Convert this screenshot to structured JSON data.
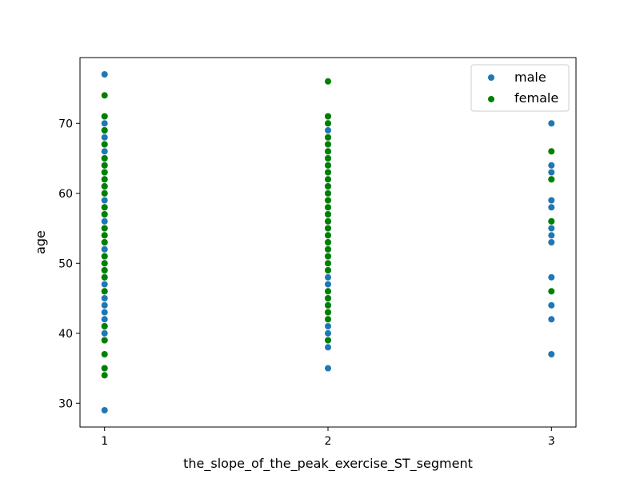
{
  "chart_data": {
    "type": "scatter",
    "title": "",
    "xlabel": "the_slope_of_the_peak_exercise_ST_segment",
    "ylabel": "age",
    "xlim": [
      0.89,
      3.11
    ],
    "ylim": [
      26.6,
      79.4
    ],
    "xticks": [
      1,
      2,
      3
    ],
    "yticks": [
      30,
      40,
      50,
      60,
      70
    ],
    "grid": false,
    "legend_position": "top-right",
    "series": [
      {
        "name": "male",
        "color": "#1f77b4",
        "points": [
          [
            1,
            77
          ],
          [
            1,
            71
          ],
          [
            1,
            70
          ],
          [
            1,
            69
          ],
          [
            1,
            68
          ],
          [
            1,
            67
          ],
          [
            1,
            66
          ],
          [
            1,
            65
          ],
          [
            1,
            64
          ],
          [
            1,
            63
          ],
          [
            1,
            62
          ],
          [
            1,
            61
          ],
          [
            1,
            60
          ],
          [
            1,
            59
          ],
          [
            1,
            58
          ],
          [
            1,
            57
          ],
          [
            1,
            56
          ],
          [
            1,
            55
          ],
          [
            1,
            54
          ],
          [
            1,
            53
          ],
          [
            1,
            52
          ],
          [
            1,
            51
          ],
          [
            1,
            50
          ],
          [
            1,
            49
          ],
          [
            1,
            48
          ],
          [
            1,
            47
          ],
          [
            1,
            46
          ],
          [
            1,
            45
          ],
          [
            1,
            44
          ],
          [
            1,
            43
          ],
          [
            1,
            42
          ],
          [
            1,
            41
          ],
          [
            1,
            40
          ],
          [
            1,
            39
          ],
          [
            1,
            35
          ],
          [
            1,
            29
          ],
          [
            2,
            71
          ],
          [
            2,
            70
          ],
          [
            2,
            69
          ],
          [
            2,
            68
          ],
          [
            2,
            67
          ],
          [
            2,
            66
          ],
          [
            2,
            65
          ],
          [
            2,
            64
          ],
          [
            2,
            63
          ],
          [
            2,
            62
          ],
          [
            2,
            61
          ],
          [
            2,
            60
          ],
          [
            2,
            59
          ],
          [
            2,
            58
          ],
          [
            2,
            57
          ],
          [
            2,
            56
          ],
          [
            2,
            55
          ],
          [
            2,
            54
          ],
          [
            2,
            53
          ],
          [
            2,
            52
          ],
          [
            2,
            51
          ],
          [
            2,
            50
          ],
          [
            2,
            49
          ],
          [
            2,
            48
          ],
          [
            2,
            47
          ],
          [
            2,
            46
          ],
          [
            2,
            45
          ],
          [
            2,
            44
          ],
          [
            2,
            43
          ],
          [
            2,
            42
          ],
          [
            2,
            41
          ],
          [
            2,
            40
          ],
          [
            2,
            39
          ],
          [
            2,
            38
          ],
          [
            2,
            35
          ],
          [
            3,
            70
          ],
          [
            3,
            64
          ],
          [
            3,
            63
          ],
          [
            3,
            62
          ],
          [
            3,
            59
          ],
          [
            3,
            58
          ],
          [
            3,
            56
          ],
          [
            3,
            55
          ],
          [
            3,
            54
          ],
          [
            3,
            53
          ],
          [
            3,
            48
          ],
          [
            3,
            44
          ],
          [
            3,
            42
          ],
          [
            3,
            37
          ]
        ]
      },
      {
        "name": "female",
        "color": "#008000",
        "points": [
          [
            1,
            74
          ],
          [
            1,
            71
          ],
          [
            1,
            69
          ],
          [
            1,
            67
          ],
          [
            1,
            65
          ],
          [
            1,
            64
          ],
          [
            1,
            63
          ],
          [
            1,
            62
          ],
          [
            1,
            61
          ],
          [
            1,
            60
          ],
          [
            1,
            58
          ],
          [
            1,
            57
          ],
          [
            1,
            55
          ],
          [
            1,
            54
          ],
          [
            1,
            53
          ],
          [
            1,
            51
          ],
          [
            1,
            50
          ],
          [
            1,
            49
          ],
          [
            1,
            48
          ],
          [
            1,
            46
          ],
          [
            1,
            41
          ],
          [
            1,
            39
          ],
          [
            1,
            37
          ],
          [
            1,
            35
          ],
          [
            1,
            34
          ],
          [
            2,
            76
          ],
          [
            2,
            71
          ],
          [
            2,
            70
          ],
          [
            2,
            68
          ],
          [
            2,
            67
          ],
          [
            2,
            66
          ],
          [
            2,
            65
          ],
          [
            2,
            64
          ],
          [
            2,
            63
          ],
          [
            2,
            62
          ],
          [
            2,
            61
          ],
          [
            2,
            60
          ],
          [
            2,
            59
          ],
          [
            2,
            58
          ],
          [
            2,
            57
          ],
          [
            2,
            56
          ],
          [
            2,
            55
          ],
          [
            2,
            54
          ],
          [
            2,
            53
          ],
          [
            2,
            52
          ],
          [
            2,
            51
          ],
          [
            2,
            50
          ],
          [
            2,
            49
          ],
          [
            2,
            46
          ],
          [
            2,
            45
          ],
          [
            2,
            44
          ],
          [
            2,
            43
          ],
          [
            2,
            42
          ],
          [
            2,
            39
          ],
          [
            3,
            66
          ],
          [
            3,
            62
          ],
          [
            3,
            56
          ],
          [
            3,
            46
          ]
        ]
      }
    ]
  }
}
